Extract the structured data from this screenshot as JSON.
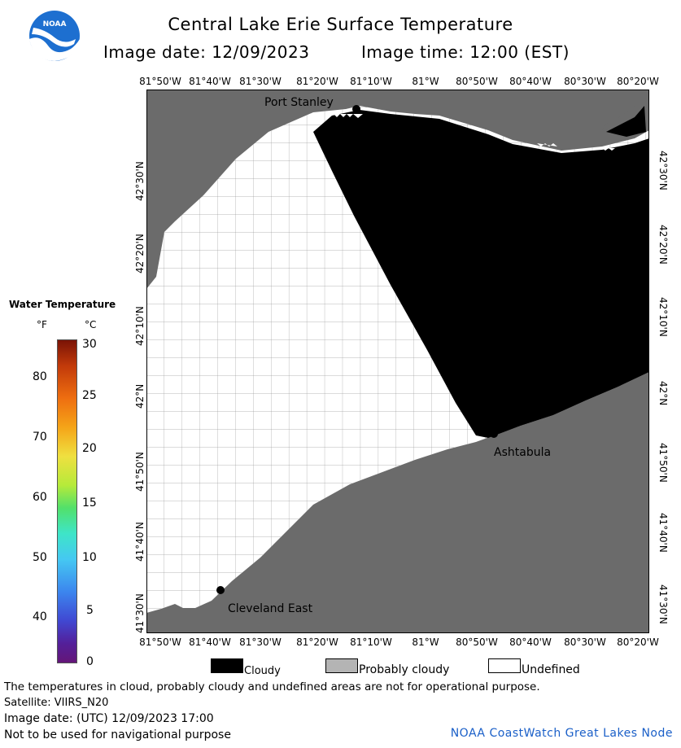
{
  "title": "Central Lake Erie Surface Temperature",
  "image_date_label": "Image date: 12/09/2023",
  "image_time_label": "Image time: 12:00 (EST)",
  "logo_text": "NOAA",
  "longitude_labels": [
    "81°50'W",
    "81°40'W",
    "81°30'W",
    "81°20'W",
    "81°10'W",
    "81°W",
    "80°50'W",
    "80°40'W",
    "80°30'W",
    "80°20'W"
  ],
  "latitude_labels": [
    "42°30'N",
    "42°20'N",
    "42°10'N",
    "42°N",
    "41°50'N",
    "41°40'N",
    "41°30'N"
  ],
  "places": [
    {
      "name": "Port Stanley"
    },
    {
      "name": "Ashtabula"
    },
    {
      "name": "Cleveland East"
    }
  ],
  "legend": {
    "title": "Water Temperature",
    "unit_f": "°F",
    "unit_c": "°C",
    "f_ticks": [
      "80",
      "70",
      "60",
      "50",
      "40"
    ],
    "c_ticks": [
      "30",
      "25",
      "20",
      "15",
      "10",
      "5",
      "0"
    ]
  },
  "map_legend": {
    "cloudy": "Cloudy",
    "probably_cloudy": "Probably cloudy",
    "undefined": "Undefined"
  },
  "colors": {
    "land": "#6b6b6b",
    "cloud": "#000000",
    "probably_cloudy": "#b4b4b4",
    "undefined": "#ffffff",
    "grid": "#9a9a9a",
    "credit": "#1a5fc8"
  },
  "footer": {
    "disclaimer": "The temperatures in cloud, probably cloudy and undefined areas are not for operational purpose.",
    "satellite": "Satellite: VIIRS_N20",
    "utc_date": "Image date: (UTC) 12/09/2023   17:00",
    "nav_warning": "Not to be used for navigational purpose",
    "credit": "NOAA CoastWatch Great Lakes Node"
  }
}
